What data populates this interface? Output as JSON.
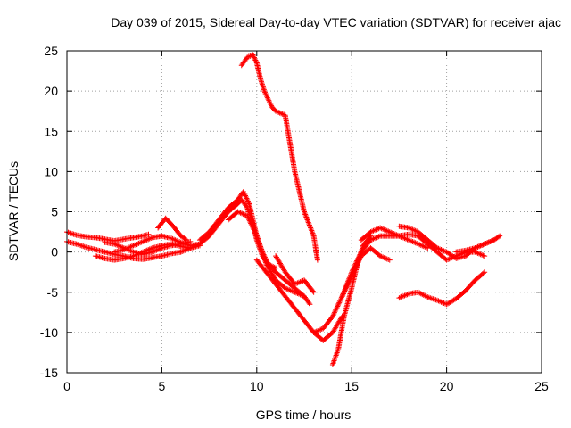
{
  "chart_data": {
    "type": "scatter",
    "title": "Day 039 of 2015, Sidereal Day-to-day VTEC variation (SDTVAR) for receiver ajac",
    "xlabel": "GPS time / hours",
    "ylabel": "SDTVAR / TECUs",
    "xlim": [
      0,
      25
    ],
    "ylim": [
      -15,
      25
    ],
    "xticks": [
      0,
      5,
      10,
      15,
      20,
      25
    ],
    "yticks": [
      -15,
      -10,
      -5,
      0,
      5,
      10,
      15,
      20,
      25
    ],
    "xtick_labels": [
      "0",
      "5",
      "10",
      "15",
      "20",
      "25"
    ],
    "ytick_labels": [
      "-15",
      "-10",
      "-5",
      "0",
      "5",
      "10",
      "15",
      "20",
      "25"
    ],
    "grid": true,
    "grid_style": "dotted",
    "marker": "plus",
    "color": "#ff0000",
    "series": [
      {
        "x": [
          0.0,
          0.5,
          1.0,
          1.5,
          2.0,
          2.5,
          3.0,
          3.5,
          4.0,
          4.3
        ],
        "y": [
          2.5,
          2.1,
          1.9,
          1.8,
          1.6,
          1.4,
          1.6,
          1.8,
          2.0,
          2.2
        ]
      },
      {
        "x": [
          0.0,
          0.5,
          1.0,
          1.5,
          2.0,
          2.5,
          3.0,
          3.5,
          4.0,
          4.5,
          5.0,
          5.5,
          6.0
        ],
        "y": [
          1.3,
          1.0,
          0.6,
          0.3,
          0.0,
          -0.3,
          -0.5,
          -0.8,
          -0.9,
          -0.7,
          -0.5,
          -0.2,
          0.0
        ]
      },
      {
        "x": [
          2.0,
          2.5,
          3.0,
          3.5,
          4.0,
          4.5,
          5.0,
          5.5,
          6.0,
          6.5
        ],
        "y": [
          1.2,
          1.0,
          0.5,
          0.0,
          -0.3,
          0.0,
          0.5,
          0.8,
          1.0,
          1.3
        ]
      },
      {
        "x": [
          1.5,
          2.0,
          2.5,
          3.0,
          3.5,
          4.0,
          4.5,
          5.0,
          5.5,
          6.0,
          6.5,
          7.0
        ],
        "y": [
          -0.5,
          -0.8,
          -1.0,
          -0.8,
          -0.5,
          0.0,
          0.5,
          0.8,
          1.0,
          0.7,
          0.5,
          0.8
        ]
      },
      {
        "x": [
          2.5,
          3.0,
          3.5,
          4.0,
          4.5,
          5.0,
          5.5,
          6.0,
          6.5,
          7.0
        ],
        "y": [
          0.0,
          0.3,
          0.8,
          1.3,
          1.8,
          2.0,
          1.7,
          1.2,
          0.8,
          1.0
        ]
      },
      {
        "x": [
          4.8,
          5.2,
          5.6,
          6.0,
          6.3
        ],
        "y": [
          3.0,
          4.2,
          3.2,
          2.0,
          1.5
        ]
      },
      {
        "x": [
          6.0,
          6.5,
          7.0,
          7.5,
          8.0,
          8.5,
          9.0,
          9.2,
          9.5,
          9.8,
          10.0,
          10.3,
          10.6,
          11.0
        ],
        "y": [
          0.0,
          0.5,
          1.0,
          2.0,
          3.5,
          5.0,
          6.0,
          6.5,
          5.5,
          3.5,
          1.5,
          -0.5,
          -1.5,
          -2.0
        ]
      },
      {
        "x": [
          7.0,
          7.5,
          8.0,
          8.5,
          9.0,
          9.3,
          9.6,
          10.0,
          10.5,
          11.0,
          11.5,
          12.0,
          12.5
        ],
        "y": [
          1.5,
          2.5,
          4.0,
          5.5,
          6.5,
          7.5,
          6.0,
          2.0,
          -1.5,
          -3.5,
          -4.5,
          -5.0,
          -5.5
        ]
      },
      {
        "x": [
          8.5,
          9.0,
          9.5,
          10.0,
          10.3,
          10.6,
          11.0,
          11.5,
          12.0,
          12.5,
          12.8
        ],
        "y": [
          4.0,
          5.0,
          4.5,
          2.0,
          0.0,
          -1.5,
          -2.5,
          -3.5,
          -4.5,
          -5.5,
          -6.5
        ]
      },
      {
        "x": [
          9.2,
          9.5,
          9.8,
          10.0,
          10.2,
          10.4,
          10.6,
          10.8,
          11.0,
          11.5,
          12.0,
          12.5,
          13.0,
          13.2
        ],
        "y": [
          23.2,
          24.2,
          24.5,
          23.5,
          21.5,
          20.0,
          19.0,
          18.0,
          17.5,
          17.0,
          10.0,
          5.0,
          2.0,
          -1.0
        ]
      },
      {
        "x": [
          10.0,
          10.5,
          11.0,
          11.5,
          12.0,
          12.5,
          13.0,
          13.5,
          14.0,
          14.5
        ],
        "y": [
          -1.0,
          -2.5,
          -4.0,
          -5.5,
          -7.0,
          -8.5,
          -10.0,
          -11.0,
          -10.0,
          -8.0
        ]
      },
      {
        "x": [
          11.0,
          11.5,
          12.0,
          12.5,
          13.0
        ],
        "y": [
          -0.5,
          -2.5,
          -4.0,
          -3.5,
          -5.0
        ]
      },
      {
        "x": [
          13.0,
          13.5,
          14.0,
          14.5,
          15.0,
          15.5,
          16.0,
          16.5,
          17.0,
          17.5,
          18.0,
          18.5,
          19.0,
          19.5,
          20.0,
          20.5,
          21.0,
          21.5,
          22.0
        ],
        "y": [
          -10.0,
          -9.5,
          -8.0,
          -5.5,
          -2.5,
          0.0,
          1.5,
          2.0,
          2.0,
          2.0,
          2.2,
          2.0,
          1.0,
          0.0,
          -1.0,
          -0.5,
          0.0,
          0.0,
          -0.5
        ]
      },
      {
        "x": [
          14.0,
          14.3,
          14.6,
          15.0,
          15.3,
          15.6,
          16.0
        ],
        "y": [
          -14.0,
          -12.0,
          -8.0,
          -4.5,
          -1.5,
          0.8,
          2.0
        ]
      },
      {
        "x": [
          14.5,
          15.0,
          15.5,
          16.0,
          16.5,
          17.0
        ],
        "y": [
          -5.5,
          -3.0,
          -0.5,
          0.5,
          -0.5,
          -1.0
        ]
      },
      {
        "x": [
          15.5,
          16.0,
          16.5,
          17.0,
          17.5,
          18.0,
          18.5,
          19.0
        ],
        "y": [
          1.5,
          2.5,
          3.0,
          2.5,
          2.0,
          1.5,
          1.0,
          0.5
        ]
      },
      {
        "x": [
          17.5,
          18.0,
          18.5,
          19.0,
          19.5,
          20.0,
          20.5,
          21.0,
          21.5,
          22.0,
          22.5
        ],
        "y": [
          3.2,
          3.0,
          2.5,
          1.5,
          0.5,
          0.0,
          -0.8,
          -0.5,
          0.5,
          1.0,
          1.5
        ]
      },
      {
        "x": [
          20.5,
          21.0,
          21.5,
          22.0,
          22.5,
          22.8
        ],
        "y": [
          0.0,
          0.2,
          0.5,
          1.0,
          1.5,
          2.0
        ]
      },
      {
        "x": [
          17.5,
          18.0,
          18.5,
          19.0,
          19.5,
          20.0,
          20.5,
          21.0,
          21.5,
          22.0
        ],
        "y": [
          -5.7,
          -5.2,
          -5.0,
          -5.6,
          -6.0,
          -6.5,
          -5.8,
          -4.8,
          -3.5,
          -2.5
        ]
      }
    ]
  }
}
